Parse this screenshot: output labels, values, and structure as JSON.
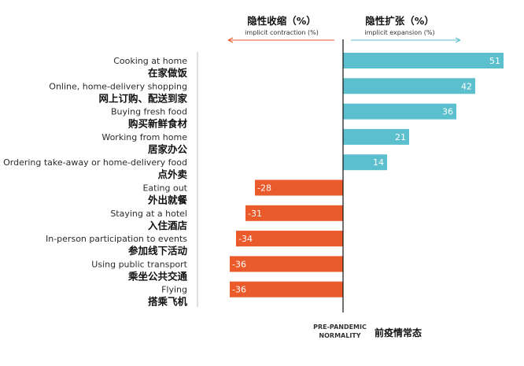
{
  "chart_data": {
    "type": "bar",
    "orientation": "horizontal",
    "categories": [
      {
        "en": "Cooking at home",
        "zh": "在家做饭"
      },
      {
        "en": "Online, home-delivery shopping",
        "zh": "网上订购、配送到家"
      },
      {
        "en": "Buying fresh food",
        "zh": "购买新鲜食材"
      },
      {
        "en": "Working from home",
        "zh": "居家办公"
      },
      {
        "en": "Ordering take-away or home-delivery food",
        "zh": "点外卖"
      },
      {
        "en": "Eating out",
        "zh": "外出就餐"
      },
      {
        "en": "Staying at a hotel",
        "zh": "入住酒店"
      },
      {
        "en": "In-person participation to events",
        "zh": "参加线下活动"
      },
      {
        "en": "Using public transport",
        "zh": "乘坐公共交通"
      },
      {
        "en": "Flying",
        "zh": "搭乘飞机"
      }
    ],
    "values": [
      51,
      42,
      36,
      21,
      14,
      -28,
      -31,
      -34,
      -36,
      -36
    ],
    "value_labels": [
      "51",
      "42",
      "36",
      "21",
      "14",
      "-28",
      "-31",
      "-34",
      "-36",
      "-36"
    ],
    "xlim": [
      -40,
      60
    ],
    "grid": false,
    "legend": "none",
    "headers": {
      "left_zh": "隐性收缩（%）",
      "left_en": "implicit contraction (%)",
      "right_zh": "隐性扩张（%）",
      "right_en": "implicit expansion (%)"
    },
    "baseline_label": {
      "en_line1": "PRE-PANDEMIC",
      "en_line2": "NORMALITY",
      "zh": "前疫情常态"
    },
    "colors": {
      "positive": "#5bbfce",
      "negative": "#ea5a2b",
      "left_arrow": "#ea5a2b",
      "right_arrow": "#5bbfce",
      "axis": "#111111"
    }
  }
}
